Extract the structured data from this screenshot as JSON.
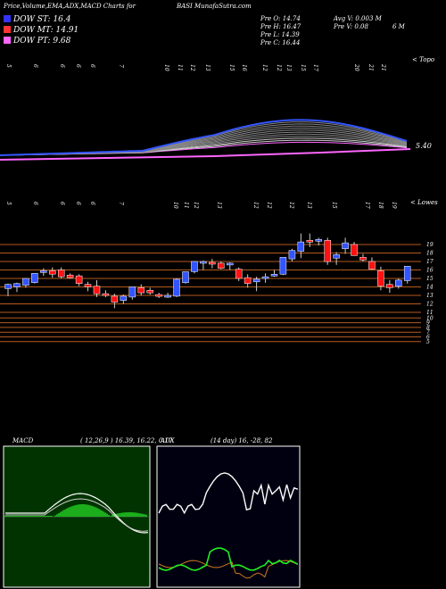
{
  "header": {
    "title_left": "Price,Volume,EMA,ADX,MACD Charts for",
    "title_right": "BASI MunafaSutra.com"
  },
  "legend": [
    {
      "label": "DOW ST: 16.4",
      "color": "#3333ff"
    },
    {
      "label": "DOW MT: 14.91",
      "color": "#ff3333"
    },
    {
      "label": "DOW PT: 9.68",
      "color": "#ff66ff"
    }
  ],
  "quote": {
    "open": "Pre  O: 14.74",
    "high": "Pre  H: 16.47",
    "low": "Pre  L: 14.39",
    "close": "Pre  C: 16.44",
    "avg_volume": "Avg V: 0.003 M",
    "pre_volume": "Pre  V: 0.08",
    "period": "6  M"
  },
  "ema_panel": {
    "top_right_label": "< Topo",
    "last_value_label": "5.40",
    "date_labels": [
      "5",
      "6",
      "6",
      "6",
      "6",
      "7",
      "10",
      "11",
      "12",
      "13",
      "15",
      "16",
      "12",
      "12",
      "13",
      "15",
      "17",
      "20",
      "21",
      "21"
    ]
  },
  "price_panel": {
    "top_right_label": "< Lowes",
    "date_labels": [
      "5",
      "6",
      "6",
      "6",
      "6",
      "7",
      "10",
      "11",
      "12",
      "13",
      "12",
      "12",
      "12",
      "13",
      "15",
      "17",
      "18",
      "19"
    ],
    "y_levels": [
      19,
      18,
      17,
      16,
      15,
      14,
      13,
      12,
      11,
      10,
      9,
      8,
      7,
      6,
      5
    ],
    "candles": [
      {
        "o": 13.8,
        "h": 14.4,
        "l": 12.9,
        "c": 14.3,
        "up": true
      },
      {
        "o": 14.0,
        "h": 14.5,
        "l": 13.4,
        "c": 14.4,
        "up": true
      },
      {
        "o": 14.2,
        "h": 15.0,
        "l": 13.9,
        "c": 15.0,
        "up": true
      },
      {
        "o": 14.5,
        "h": 15.6,
        "l": 14.4,
        "c": 15.6,
        "up": true
      },
      {
        "o": 15.7,
        "h": 16.2,
        "l": 15.3,
        "c": 15.9,
        "up": true
      },
      {
        "o": 15.9,
        "h": 16.3,
        "l": 15.1,
        "c": 15.5,
        "up": false
      },
      {
        "o": 16.0,
        "h": 16.3,
        "l": 15.0,
        "c": 15.2,
        "up": false
      },
      {
        "o": 15.4,
        "h": 15.6,
        "l": 15.0,
        "c": 15.1,
        "up": false
      },
      {
        "o": 15.3,
        "h": 15.5,
        "l": 14.1,
        "c": 14.4,
        "up": false
      },
      {
        "o": 14.3,
        "h": 14.6,
        "l": 13.5,
        "c": 14.0,
        "up": false
      },
      {
        "o": 14.1,
        "h": 14.8,
        "l": 12.8,
        "c": 13.2,
        "up": false
      },
      {
        "o": 13.2,
        "h": 13.6,
        "l": 12.8,
        "c": 13.0,
        "up": false
      },
      {
        "o": 12.9,
        "h": 13.2,
        "l": 11.5,
        "c": 12.2,
        "up": false
      },
      {
        "o": 12.4,
        "h": 13.1,
        "l": 12.0,
        "c": 12.9,
        "up": true
      },
      {
        "o": 12.8,
        "h": 14.0,
        "l": 12.5,
        "c": 14.0,
        "up": true
      },
      {
        "o": 13.9,
        "h": 14.3,
        "l": 13.0,
        "c": 13.3,
        "up": false
      },
      {
        "o": 13.3,
        "h": 13.9,
        "l": 13.1,
        "c": 13.6,
        "up": false
      },
      {
        "o": 13.0,
        "h": 13.3,
        "l": 12.7,
        "c": 13.1,
        "up": false
      },
      {
        "o": 13.0,
        "h": 13.3,
        "l": 12.7,
        "c": 13.0,
        "up": true
      },
      {
        "o": 12.9,
        "h": 15.0,
        "l": 12.8,
        "c": 14.9,
        "up": true
      },
      {
        "o": 14.5,
        "h": 15.8,
        "l": 14.4,
        "c": 15.8,
        "up": true
      },
      {
        "o": 15.8,
        "h": 17.0,
        "l": 15.6,
        "c": 17.0,
        "up": true
      },
      {
        "o": 16.9,
        "h": 17.1,
        "l": 16.0,
        "c": 17.0,
        "up": true
      },
      {
        "o": 16.9,
        "h": 17.3,
        "l": 16.2,
        "c": 16.7,
        "up": false
      },
      {
        "o": 16.8,
        "h": 17.0,
        "l": 16.1,
        "c": 16.2,
        "up": false
      },
      {
        "o": 16.6,
        "h": 16.9,
        "l": 16.0,
        "c": 16.8,
        "up": true
      },
      {
        "o": 16.1,
        "h": 16.3,
        "l": 14.7,
        "c": 15.0,
        "up": false
      },
      {
        "o": 15.1,
        "h": 15.5,
        "l": 13.9,
        "c": 14.4,
        "up": false
      },
      {
        "o": 14.9,
        "h": 15.2,
        "l": 13.5,
        "c": 14.6,
        "up": true
      },
      {
        "o": 15.0,
        "h": 15.6,
        "l": 14.5,
        "c": 15.2,
        "up": true
      },
      {
        "o": 15.3,
        "h": 16.0,
        "l": 15.2,
        "c": 15.5,
        "up": true
      },
      {
        "o": 15.5,
        "h": 17.5,
        "l": 15.4,
        "c": 17.5,
        "up": true
      },
      {
        "o": 17.3,
        "h": 18.5,
        "l": 17.0,
        "c": 18.3,
        "up": true
      },
      {
        "o": 18.2,
        "h": 20.3,
        "l": 17.4,
        "c": 19.3,
        "up": true
      },
      {
        "o": 19.5,
        "h": 20.3,
        "l": 18.7,
        "c": 19.4,
        "up": false
      },
      {
        "o": 19.6,
        "h": 19.8,
        "l": 18.9,
        "c": 19.5,
        "up": true
      },
      {
        "o": 19.5,
        "h": 19.8,
        "l": 16.6,
        "c": 17.0,
        "up": false
      },
      {
        "o": 17.4,
        "h": 18.1,
        "l": 16.6,
        "c": 17.8,
        "up": true
      },
      {
        "o": 18.5,
        "h": 19.8,
        "l": 17.9,
        "c": 19.2,
        "up": true
      },
      {
        "o": 19.0,
        "h": 19.3,
        "l": 17.7,
        "c": 17.7,
        "up": false
      },
      {
        "o": 17.5,
        "h": 17.9,
        "l": 17.0,
        "c": 17.2,
        "up": false
      },
      {
        "o": 17.0,
        "h": 17.5,
        "l": 16.0,
        "c": 16.1,
        "up": false
      },
      {
        "o": 15.9,
        "h": 16.4,
        "l": 13.6,
        "c": 14.1,
        "up": false
      },
      {
        "o": 14.3,
        "h": 14.8,
        "l": 13.3,
        "c": 13.9,
        "up": false
      },
      {
        "o": 14.1,
        "h": 15.0,
        "l": 13.8,
        "c": 14.8,
        "up": true
      },
      {
        "o": 14.74,
        "h": 16.47,
        "l": 14.39,
        "c": 16.44,
        "up": true
      }
    ]
  },
  "macd": {
    "label": "MACD",
    "params": "( 12,26,9 ) 16.39,  16.22,  0.17"
  },
  "adx": {
    "label": "ADX",
    "params": "(14  day) 16,  -28,  82"
  },
  "colors": {
    "up": "#3355ff",
    "down": "#ff1111",
    "level_line": "#b35a1f",
    "macd_fill": "#22cc22",
    "adx_green": "#22ee22",
    "adx_orange": "#d07a20"
  }
}
